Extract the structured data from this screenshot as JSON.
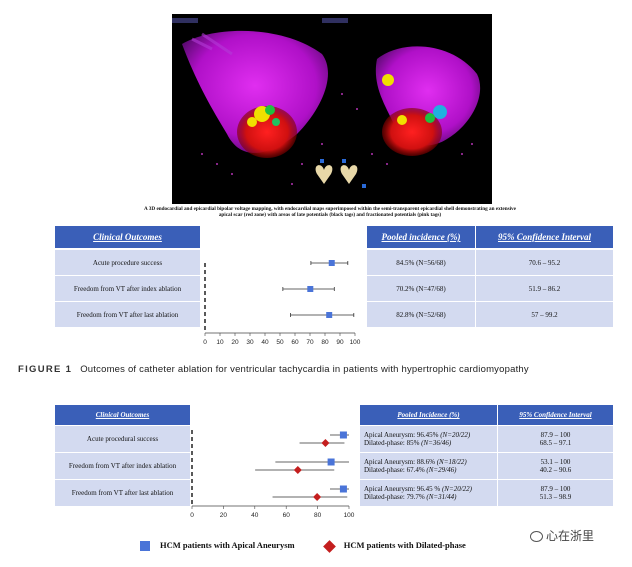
{
  "figure_top": {
    "map_caption": "A 3D endocardial and epicardial bipolar voltage mapping, with endocardial maps superimposed within the semi-transparent epicardial shell demonstrating an extensive apical scar (red zone) with areas of late potentials (black tags) and fractionated potentials (pink tags)",
    "headers": [
      "Clinical Outcomes",
      "Pooled incidence (%)",
      "95% Confidence Interval"
    ],
    "rows": [
      {
        "label": "Acute procedure success",
        "incidence": "84.5% (N=56/68)",
        "ci": "70.6 – 95.2"
      },
      {
        "label": "Freedom from VT after index ablation",
        "incidence": "70.2% (N=47/68)",
        "ci": "51.9 – 86.2"
      },
      {
        "label": "Freedom from VT after last ablation",
        "incidence": "82.8% (N=52/68)",
        "ci": "57 – 99.2"
      }
    ],
    "axis_ticks": [
      "0",
      "10",
      "20",
      "30",
      "40",
      "50",
      "60",
      "70",
      "80",
      "90",
      "100"
    ]
  },
  "figure_label": {
    "number": "FIGURE 1",
    "title": "Outcomes of catheter ablation for ventricular tachycardia in patients with hypertrophic cardiomyopathy"
  },
  "figure_bottom": {
    "headers": [
      "Clinical Outcomes",
      "Pooled Incidence (%)",
      "95% Confidence Interval"
    ],
    "rows": [
      {
        "label": "Acute procedural success",
        "aneurysm": "Apical Aneurysm: 96.45% ",
        "aneurysm_n": "(N=20/22)",
        "dilated": "Dilated-phase: 85% ",
        "dilated_n": "(N=36/46)",
        "ci_a": "87.9 – 100",
        "ci_d": "68.5 – 97.1"
      },
      {
        "label": "Freedom from VT after index ablation",
        "aneurysm": "Apical Aneurysm: 88.6% ",
        "aneurysm_n": "(N=18/22)",
        "dilated": "Dilated-phase: 67.4% ",
        "dilated_n": "(N=29/46)",
        "ci_a": "53.1 – 100",
        "ci_d": "40.2 – 90.6"
      },
      {
        "label": "Freedom from VT after last ablation",
        "aneurysm": "Apical Aneurysm: 96.45 % ",
        "aneurysm_n": "(N=20/22)",
        "dilated": "Dilated-phase: 79.7% ",
        "dilated_n": "(N=31/44)",
        "ci_a": "87.9 – 100",
        "ci_d": "51.3 – 98.9"
      }
    ],
    "axis_ticks": [
      "0",
      "20",
      "40",
      "60",
      "80",
      "100"
    ],
    "legend_aneurysm": "HCM patients with Apical Aneurysm",
    "legend_dilated": "HCM patients with Dilated-phase"
  },
  "watermark": "心在浙里",
  "colors": {
    "header_blue": "#3a5fb8",
    "row_fill": "#d3daf0",
    "aneurysm_marker": "#4a74d8",
    "dilated_marker": "#c41e1e"
  },
  "chart_data": [
    {
      "type": "scatter",
      "title": "",
      "xlabel": "",
      "ylabel": "",
      "xlim": [
        0,
        100
      ],
      "categories": [
        "Acute procedure success",
        "Freedom from VT after index ablation",
        "Freedom from VT after last ablation"
      ],
      "series": [
        {
          "values": [
            84.5,
            70.2,
            82.8
          ],
          "lower": [
            70.6,
            51.9,
            57
          ],
          "upper": [
            95.2,
            86.2,
            99.2
          ]
        }
      ]
    },
    {
      "type": "scatter",
      "title": "",
      "xlabel": "",
      "ylabel": "",
      "xlim": [
        0,
        100
      ],
      "categories": [
        "Acute procedural success",
        "Freedom from VT after index ablation",
        "Freedom from VT after last ablation"
      ],
      "series": [
        {
          "name": "HCM patients with Apical Aneurysm",
          "values": [
            96.45,
            88.6,
            96.45
          ],
          "lower": [
            87.9,
            53.1,
            87.9
          ],
          "upper": [
            100,
            100,
            100
          ]
        },
        {
          "name": "HCM patients with Dilated-phase",
          "values": [
            85,
            67.4,
            79.7
          ],
          "lower": [
            68.5,
            40.2,
            51.3
          ],
          "upper": [
            97.1,
            90.6,
            98.9
          ]
        }
      ]
    }
  ]
}
